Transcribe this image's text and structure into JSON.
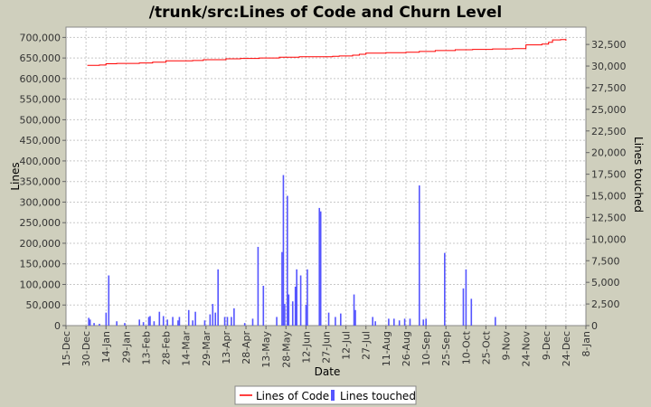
{
  "chart_data": {
    "type": "line+bar",
    "title": "/trunk/src:Lines of Code and Churn Level",
    "xlabel": "Date",
    "ylabel_left": "Lines",
    "ylabel_right": "Lines touched",
    "x_ticks": [
      "15-Dec",
      "30-Dec",
      "14-Jan",
      "29-Jan",
      "13-Feb",
      "28-Feb",
      "14-Mar",
      "29-Mar",
      "13-Apr",
      "28-Apr",
      "13-May",
      "28-May",
      "12-Jun",
      "27-Jun",
      "12-Jul",
      "27-Jul",
      "11-Aug",
      "26-Aug",
      "10-Sep",
      "25-Sep",
      "10-Oct",
      "25-Oct",
      "9-Nov",
      "24-Nov",
      "9-Dec",
      "24-Dec",
      "8-Jan"
    ],
    "xlim_days": [
      0,
      390
    ],
    "ylim_left": [
      0,
      725000
    ],
    "ylim_right": [
      0,
      34500
    ],
    "y_ticks_left": [
      "0",
      "50,000",
      "100,000",
      "150,000",
      "200,000",
      "250,000",
      "300,000",
      "350,000",
      "400,000",
      "450,000",
      "500,000",
      "550,000",
      "600,000",
      "650,000",
      "700,000"
    ],
    "y_ticks_right": [
      "0",
      "2,500",
      "5,000",
      "7,500",
      "10,000",
      "12,500",
      "15,000",
      "17,500",
      "20,000",
      "22,500",
      "25,000",
      "27,500",
      "30,000",
      "32,500"
    ],
    "legend": [
      "Lines of Code",
      "Lines touched"
    ],
    "colors": {
      "background": "#cfcfbd",
      "plot_bg": "#ffffff",
      "grid": "#c8c8c8",
      "loc_line": "#ff0000",
      "churn_bar": "#5555ff"
    },
    "series": [
      {
        "name": "Lines of Code",
        "axis": "left",
        "points": [
          [
            16,
            632000
          ],
          [
            25,
            633000
          ],
          [
            30,
            636000
          ],
          [
            38,
            637000
          ],
          [
            55,
            638000
          ],
          [
            65,
            640000
          ],
          [
            75,
            643000
          ],
          [
            95,
            644000
          ],
          [
            103,
            646000
          ],
          [
            120,
            648000
          ],
          [
            131,
            649000
          ],
          [
            145,
            650000
          ],
          [
            160,
            652000
          ],
          [
            175,
            653000
          ],
          [
            190,
            653000
          ],
          [
            200,
            654000
          ],
          [
            205,
            655000
          ],
          [
            215,
            657000
          ],
          [
            220,
            659000
          ],
          [
            225,
            662000
          ],
          [
            240,
            663000
          ],
          [
            255,
            664000
          ],
          [
            265,
            666000
          ],
          [
            277,
            668000
          ],
          [
            292,
            670000
          ],
          [
            305,
            671000
          ],
          [
            320,
            672000
          ],
          [
            335,
            673000
          ],
          [
            345,
            682000
          ],
          [
            357,
            684000
          ],
          [
            362,
            688000
          ],
          [
            365,
            694000
          ],
          [
            371,
            695000
          ],
          [
            375,
            692000
          ]
        ]
      },
      {
        "name": "Lines touched",
        "axis": "right",
        "bars": [
          [
            17,
            900
          ],
          [
            18,
            700
          ],
          [
            21,
            300
          ],
          [
            25,
            200
          ],
          [
            30,
            1500
          ],
          [
            32,
            5800
          ],
          [
            38,
            500
          ],
          [
            44,
            300
          ],
          [
            55,
            700
          ],
          [
            58,
            400
          ],
          [
            62,
            1000
          ],
          [
            63,
            1100
          ],
          [
            66,
            500
          ],
          [
            70,
            1600
          ],
          [
            73,
            1100
          ],
          [
            76,
            700
          ],
          [
            80,
            1000
          ],
          [
            84,
            600
          ],
          [
            85,
            1000
          ],
          [
            92,
            1800
          ],
          [
            95,
            600
          ],
          [
            97,
            1600
          ],
          [
            104,
            600
          ],
          [
            108,
            1300
          ],
          [
            110,
            2500
          ],
          [
            112,
            1500
          ],
          [
            114,
            6500
          ],
          [
            119,
            1000
          ],
          [
            121,
            1000
          ],
          [
            124,
            1000
          ],
          [
            126,
            2000
          ],
          [
            134,
            300
          ],
          [
            140,
            800
          ],
          [
            144,
            9100
          ],
          [
            148,
            4600
          ],
          [
            158,
            1000
          ],
          [
            162,
            8500
          ],
          [
            163,
            17400
          ],
          [
            164,
            2500
          ],
          [
            166,
            15000
          ],
          [
            167,
            3600
          ],
          [
            170,
            2800
          ],
          [
            172,
            4500
          ],
          [
            173,
            6500
          ],
          [
            176,
            5800
          ],
          [
            180,
            2400
          ],
          [
            181,
            6500
          ],
          [
            190,
            13600
          ],
          [
            191,
            13200
          ],
          [
            197,
            1500
          ],
          [
            202,
            1000
          ],
          [
            206,
            1400
          ],
          [
            216,
            3600
          ],
          [
            217,
            1800
          ],
          [
            230,
            1000
          ],
          [
            232,
            500
          ],
          [
            242,
            800
          ],
          [
            246,
            800
          ],
          [
            250,
            600
          ],
          [
            254,
            800
          ],
          [
            258,
            800
          ],
          [
            265,
            16200
          ],
          [
            268,
            700
          ],
          [
            270,
            800
          ],
          [
            284,
            8400
          ],
          [
            298,
            4300
          ],
          [
            300,
            6500
          ],
          [
            304,
            3100
          ],
          [
            322,
            1000
          ]
        ]
      }
    ]
  }
}
